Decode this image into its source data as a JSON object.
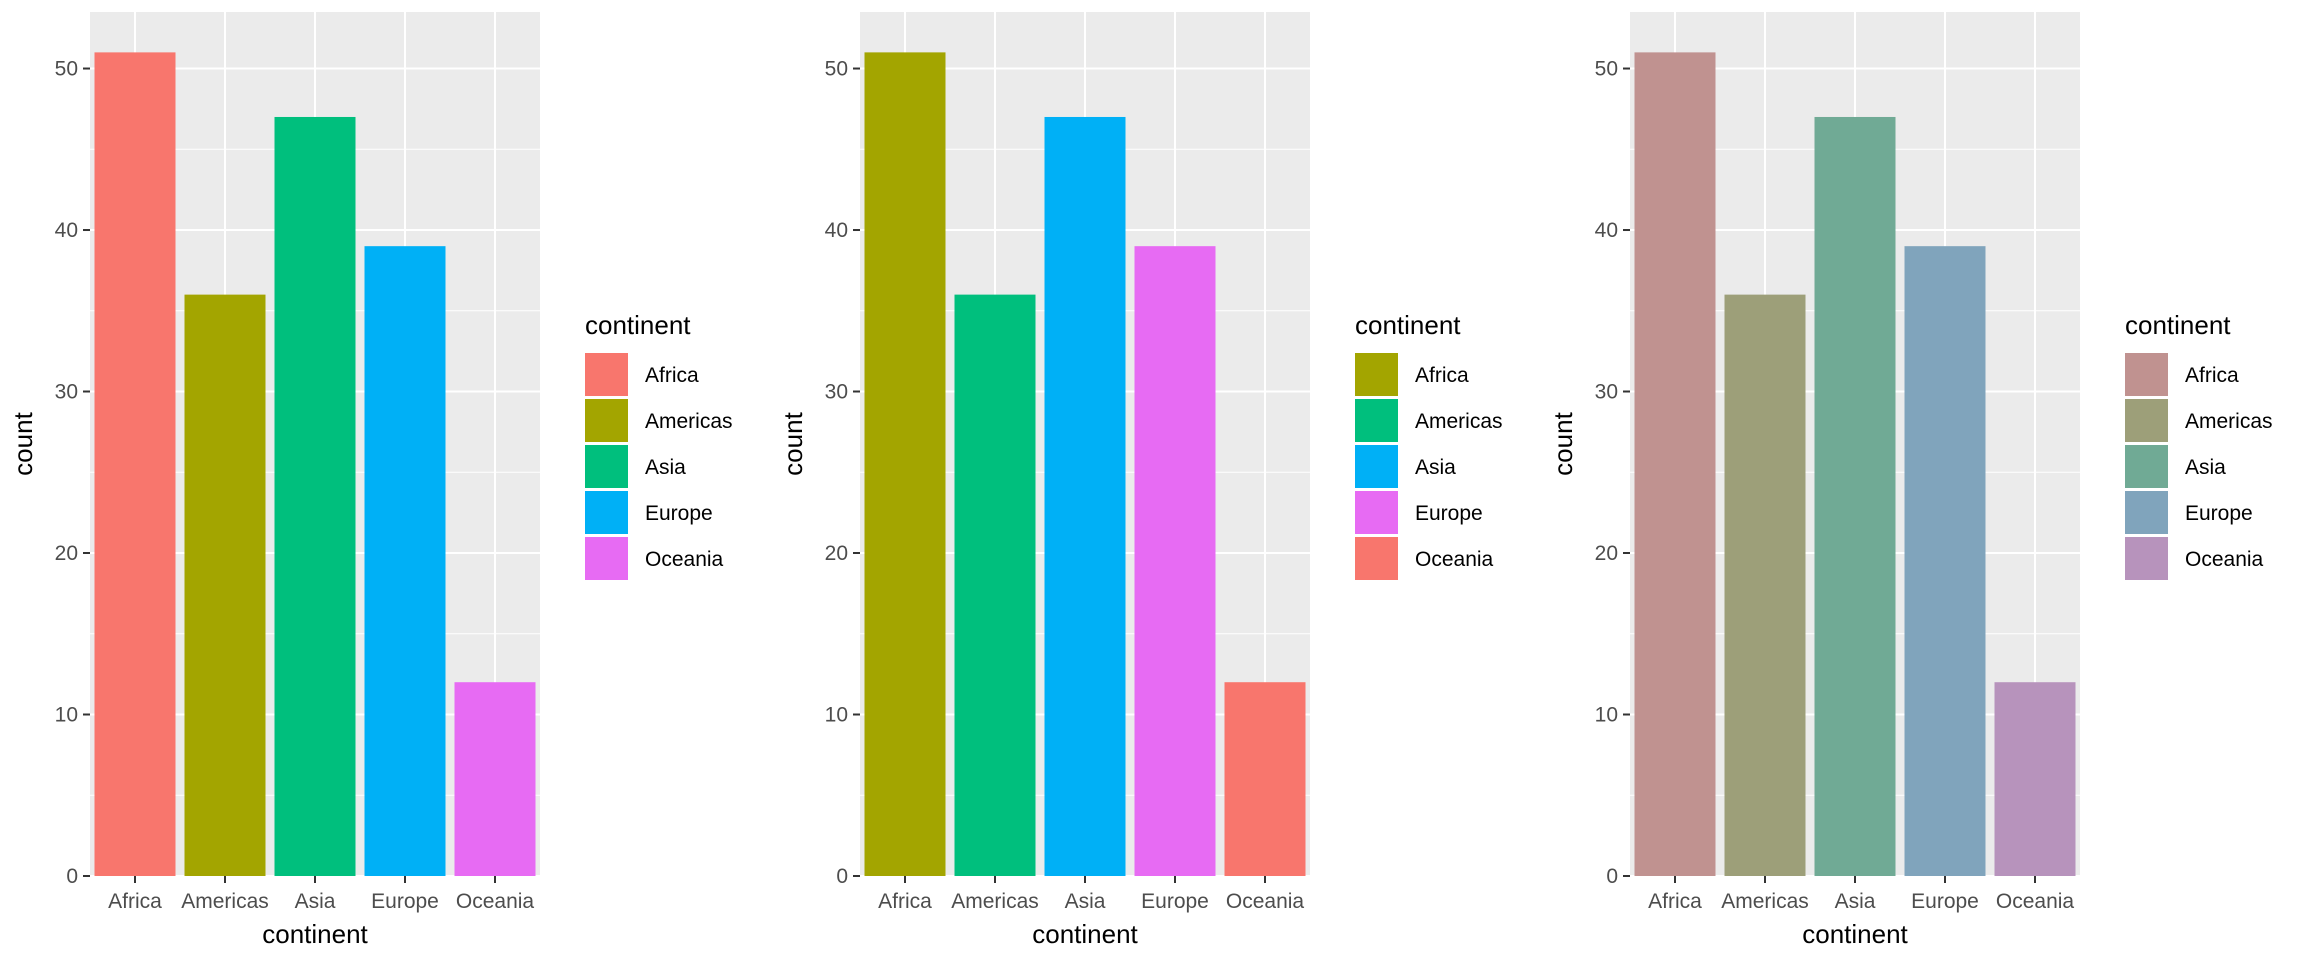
{
  "chart_data": [
    {
      "type": "bar",
      "categories": [
        "Africa",
        "Americas",
        "Asia",
        "Europe",
        "Oceania"
      ],
      "values": [
        51,
        36,
        47,
        39,
        12
      ],
      "colors": [
        "#F8766D",
        "#A3A500",
        "#00BF7D",
        "#00B0F6",
        "#E76BF3"
      ],
      "xlabel": "continent",
      "ylabel": "count",
      "yticks": [
        0,
        10,
        20,
        30,
        40,
        50
      ],
      "ylim": [
        0,
        53.5
      ],
      "grid": true,
      "legend": {
        "title": "continent",
        "placement": "right",
        "items": [
          "Africa",
          "Americas",
          "Asia",
          "Europe",
          "Oceania"
        ]
      }
    },
    {
      "type": "bar",
      "categories": [
        "Africa",
        "Americas",
        "Asia",
        "Europe",
        "Oceania"
      ],
      "values": [
        51,
        36,
        47,
        39,
        12
      ],
      "colors": [
        "#A3A500",
        "#00BF7D",
        "#00B0F6",
        "#E76BF3",
        "#F8766D"
      ],
      "xlabel": "continent",
      "ylabel": "count",
      "yticks": [
        0,
        10,
        20,
        30,
        40,
        50
      ],
      "ylim": [
        0,
        53.5
      ],
      "grid": true,
      "legend": {
        "title": "continent",
        "placement": "right",
        "items": [
          "Africa",
          "Americas",
          "Asia",
          "Europe",
          "Oceania"
        ]
      }
    },
    {
      "type": "bar",
      "categories": [
        "Africa",
        "Americas",
        "Asia",
        "Europe",
        "Oceania"
      ],
      "values": [
        51,
        36,
        47,
        39,
        12
      ],
      "colors": [
        "#C09290",
        "#9D9F79",
        "#70AA95",
        "#80A4BC",
        "#B793BC"
      ],
      "xlabel": "continent",
      "ylabel": "count",
      "yticks": [
        0,
        10,
        20,
        30,
        40,
        50
      ],
      "ylim": [
        0,
        53.5
      ],
      "grid": true,
      "legend": {
        "title": "continent",
        "placement": "right",
        "items": [
          "Africa",
          "Americas",
          "Asia",
          "Europe",
          "Oceania"
        ]
      }
    }
  ]
}
